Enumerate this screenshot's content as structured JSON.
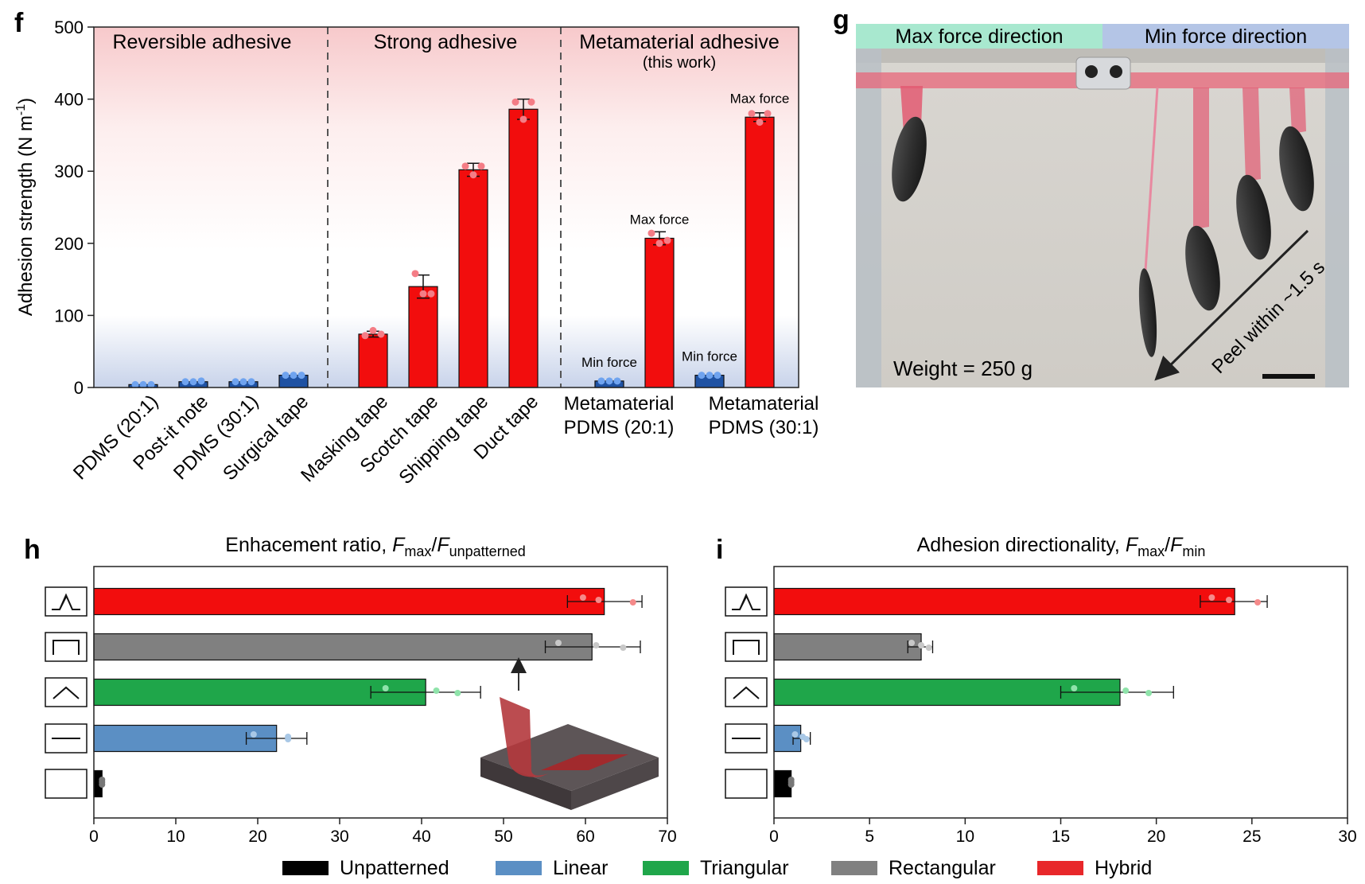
{
  "panel_letters": {
    "f": "f",
    "g": "g",
    "h": "h",
    "i": "i"
  },
  "chart_data": [
    {
      "id": "f",
      "type": "bar",
      "ylabel": "Adhesion strength (N m",
      "ylabel_sup": "-1",
      "ylabel_close": ")",
      "ylim": [
        0,
        500
      ],
      "yticks": [
        0,
        100,
        200,
        300,
        400,
        500
      ],
      "groups": [
        {
          "label": "Reversible adhesive",
          "sublabel": ""
        },
        {
          "label": "Strong adhesive",
          "sublabel": ""
        },
        {
          "label": "Metamaterial adhesive",
          "sublabel": "(this work)"
        }
      ],
      "categories": [
        {
          "label": "PDMS (20:1)",
          "value": 4,
          "err": 0,
          "color": "#1f52a3",
          "points": [
            4,
            4,
            4
          ],
          "group": 0
        },
        {
          "label": "Post-it note",
          "value": 8,
          "err": 0,
          "color": "#1f52a3",
          "points": [
            8,
            8,
            9
          ],
          "group": 0
        },
        {
          "label": "PDMS (30:1)",
          "value": 8,
          "err": 0,
          "color": "#1f52a3",
          "points": [
            8,
            8,
            8
          ],
          "group": 0
        },
        {
          "label": "Surgical tape",
          "value": 17,
          "err": 0,
          "color": "#1f52a3",
          "points": [
            17,
            17,
            17
          ],
          "group": 0
        },
        {
          "label": "Masking tape",
          "value": 74,
          "err": 4,
          "color": "#f20d0d",
          "points": [
            72,
            79,
            74
          ],
          "group": 1
        },
        {
          "label": "Scotch tape",
          "value": 140,
          "err": 16,
          "color": "#f20d0d",
          "points": [
            158,
            130,
            130
          ],
          "group": 1
        },
        {
          "label": "Shipping tape",
          "value": 302,
          "err": 9,
          "color": "#f20d0d",
          "points": [
            307,
            295,
            307
          ],
          "group": 1
        },
        {
          "label": "Duct tape",
          "value": 386,
          "err": 14,
          "color": "#f20d0d",
          "points": [
            396,
            372,
            396
          ],
          "group": 1
        },
        {
          "label": "Min force",
          "value": 9,
          "err": 0,
          "color": "#1f52a3",
          "points": [
            9,
            9,
            9
          ],
          "group": 2
        },
        {
          "label": "Max force",
          "value": 207,
          "err": 9,
          "color": "#f20d0d",
          "points": [
            214,
            200,
            204
          ],
          "group": 2
        },
        {
          "label": "Min force",
          "value": 17,
          "err": 0,
          "color": "#1f52a3",
          "points": [
            17,
            17,
            17
          ],
          "group": 2
        },
        {
          "label": "Max force",
          "value": 375,
          "err": 6,
          "color": "#f20d0d",
          "points": [
            380,
            368,
            380
          ],
          "group": 2
        }
      ],
      "metamaterial_labels": [
        {
          "line1": "Metamaterial",
          "line2": "PDMS (20:1)"
        },
        {
          "line1": "Metamaterial",
          "line2": "PDMS (30:1)"
        }
      ]
    },
    {
      "id": "h",
      "type": "bar",
      "orientation": "horizontal",
      "title": "Enhacement ratio, ",
      "title_math": {
        "F": "F",
        "sub1": "max",
        "slash": "/",
        "sub2": "unpatterned"
      },
      "xlim": [
        0,
        70
      ],
      "xticks": [
        0,
        10,
        20,
        30,
        40,
        50,
        60,
        70
      ],
      "series": [
        {
          "name": "Hybrid",
          "value": 62.3,
          "err_low": 57.8,
          "err_high": 66.9,
          "points": [
            59.7,
            61.6,
            65.8
          ],
          "color": "#f20d0d",
          "dot": "#f58a8a"
        },
        {
          "name": "Rectangular",
          "value": 60.8,
          "err_low": 55.1,
          "err_high": 66.7,
          "points": [
            56.7,
            61.3,
            64.6
          ],
          "color": "#808080",
          "dot": "#c8c8c8"
        },
        {
          "name": "Triangular",
          "value": 40.5,
          "err_low": 33.8,
          "err_high": 47.2,
          "points": [
            35.6,
            41.8,
            44.4
          ],
          "color": "#1fa64a",
          "dot": "#8fe3aa"
        },
        {
          "name": "Linear",
          "value": 22.3,
          "err_low": 18.6,
          "err_high": 26.0,
          "points": [
            19.5,
            23.7,
            23.7
          ],
          "color": "#5b8fc4",
          "dot": "#a9c8e6"
        },
        {
          "name": "Unpatterned",
          "value": 1.0,
          "err_low": 1.0,
          "err_high": 1.0,
          "points": [
            1.0,
            1.0,
            1.0
          ],
          "color": "#000000",
          "dot": "#777777"
        }
      ]
    },
    {
      "id": "i",
      "type": "bar",
      "orientation": "horizontal",
      "title": "Adhesion directionality, ",
      "title_math": {
        "F": "F",
        "sub1": "max",
        "slash": "/",
        "sub2": "min"
      },
      "xlim": [
        0,
        30
      ],
      "xticks": [
        0,
        5,
        10,
        15,
        20,
        25,
        30
      ],
      "series": [
        {
          "name": "Hybrid",
          "value": 24.1,
          "err_low": 22.3,
          "err_high": 25.8,
          "points": [
            22.9,
            23.8,
            25.3
          ],
          "color": "#f20d0d",
          "dot": "#f58a8a"
        },
        {
          "name": "Rectangular",
          "value": 7.7,
          "err_low": 7.0,
          "err_high": 8.3,
          "points": [
            7.2,
            7.7,
            8.1
          ],
          "color": "#808080",
          "dot": "#c8c8c8"
        },
        {
          "name": "Triangular",
          "value": 18.1,
          "err_low": 15.0,
          "err_high": 20.9,
          "points": [
            15.7,
            18.4,
            19.6
          ],
          "color": "#1fa64a",
          "dot": "#8fe3aa"
        },
        {
          "name": "Linear",
          "value": 1.4,
          "err_low": 1.0,
          "err_high": 1.9,
          "points": [
            1.1,
            1.5,
            1.7
          ],
          "color": "#5b8fc4",
          "dot": "#a9c8e6"
        },
        {
          "name": "Unpatterned",
          "value": 0.9,
          "err_low": 0.9,
          "err_high": 0.9,
          "points": [
            0.9,
            0.9,
            0.9
          ],
          "color": "#000000",
          "dot": "#777777"
        }
      ]
    }
  ],
  "photo": {
    "header_left": "Max force direction",
    "header_right": "Min force direction",
    "weight_label": "Weight = 250 g",
    "peel_label": "Peel within ~1.5 s"
  },
  "legend": [
    {
      "name": "Unpatterned",
      "color": "#000000"
    },
    {
      "name": "Linear",
      "color": "#5b8fc4"
    },
    {
      "name": "Triangular",
      "color": "#1fa64a"
    },
    {
      "name": "Rectangular",
      "color": "#808080"
    },
    {
      "name": "Hybrid",
      "color": "#e8272a"
    }
  ],
  "icons": [
    "hybrid-pattern-icon",
    "rectangular-pattern-icon",
    "triangular-pattern-icon",
    "linear-pattern-icon",
    "unpatterned-icon"
  ]
}
